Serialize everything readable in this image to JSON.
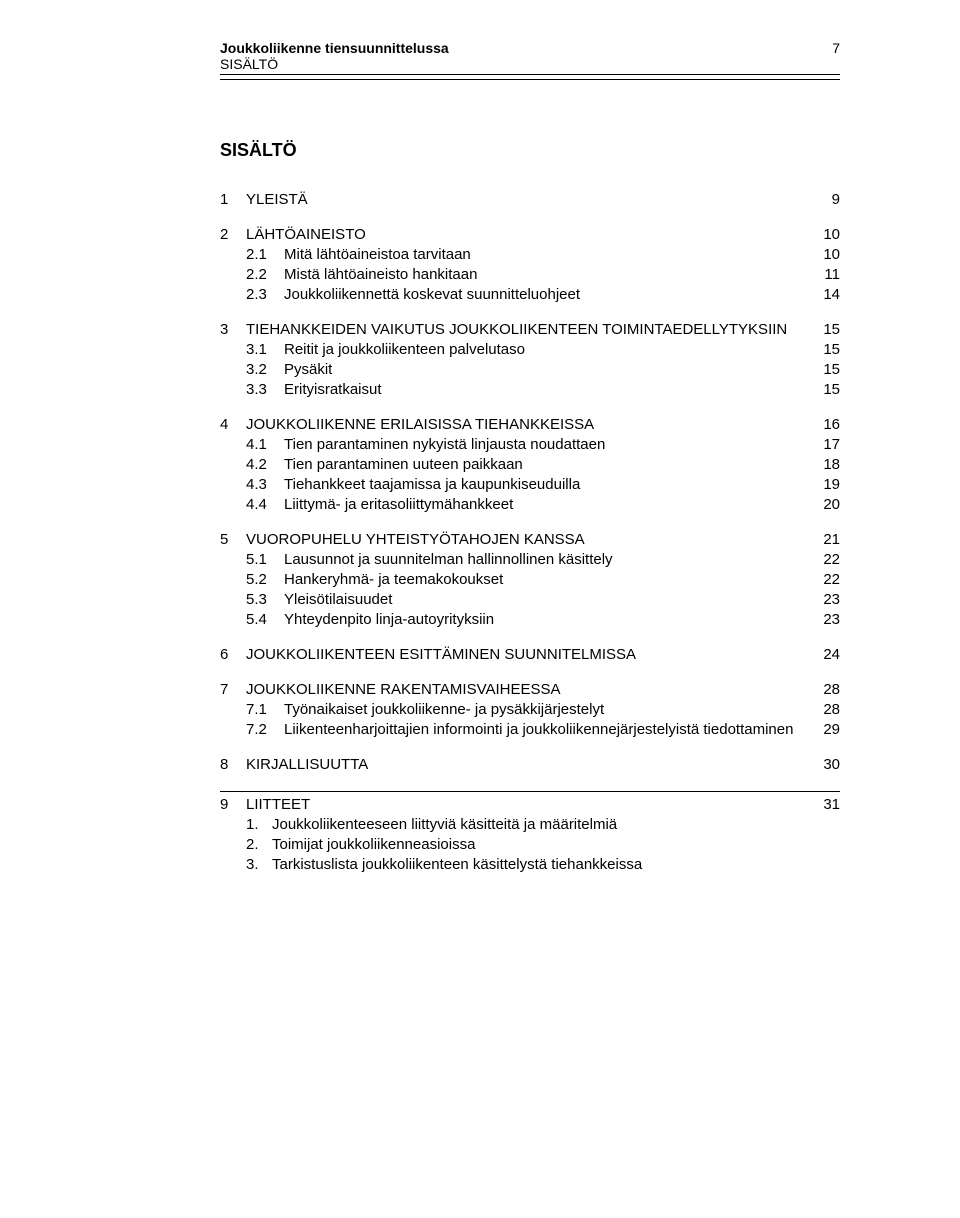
{
  "header": {
    "title": "Joukkoliikenne tiensuunnittelussa",
    "subtitle": "SISÄLTÖ",
    "page_number": "7"
  },
  "toc": {
    "title": "SISÄLTÖ",
    "sections": [
      {
        "num": "1",
        "label": "YLEISTÄ",
        "page": "9",
        "subs": []
      },
      {
        "num": "2",
        "label": "LÄHTÖAINEISTO",
        "page": "10",
        "subs": [
          {
            "num": "2.1",
            "label": "Mitä lähtöaineistoa tarvitaan",
            "page": "10"
          },
          {
            "num": "2.2",
            "label": "Mistä lähtöaineisto hankitaan",
            "page": "11"
          },
          {
            "num": "2.3",
            "label": "Joukkoliikennettä koskevat suunnitteluohjeet",
            "page": "14"
          }
        ]
      },
      {
        "num": "3",
        "label": "TIEHANKKEIDEN VAIKUTUS JOUKKOLIIKENTEEN TOIMINTAEDELLYTYKSIIN",
        "page": "15",
        "subs": [
          {
            "num": "3.1",
            "label": "Reitit ja joukkoliikenteen palvelutaso",
            "page": "15"
          },
          {
            "num": "3.2",
            "label": "Pysäkit",
            "page": "15"
          },
          {
            "num": "3.3",
            "label": "Erityisratkaisut",
            "page": "15"
          }
        ]
      },
      {
        "num": "4",
        "label": "JOUKKOLIIKENNE ERILAISISSA TIEHANKKEISSA",
        "page": "16",
        "subs": [
          {
            "num": "4.1",
            "label": "Tien parantaminen nykyistä linjausta noudattaen",
            "page": "17"
          },
          {
            "num": "4.2",
            "label": "Tien parantaminen uuteen paikkaan",
            "page": "18"
          },
          {
            "num": "4.3",
            "label": "Tiehankkeet taajamissa ja kaupunkiseuduilla",
            "page": "19"
          },
          {
            "num": "4.4",
            "label": "Liittymä- ja eritasoliittymähankkeet",
            "page": "20"
          }
        ]
      },
      {
        "num": "5",
        "label": "VUOROPUHELU YHTEISTYÖTAHOJEN KANSSA",
        "page": "21",
        "subs": [
          {
            "num": "5.1",
            "label": "Lausunnot ja suunnitelman hallinnollinen käsittely",
            "page": "22"
          },
          {
            "num": "5.2",
            "label": "Hankeryhmä- ja teemakokoukset",
            "page": "22"
          },
          {
            "num": "5.3",
            "label": "Yleisötilaisuudet",
            "page": "23"
          },
          {
            "num": "5.4",
            "label": "Yhteydenpito linja-autoyrityksiin",
            "page": "23"
          }
        ]
      },
      {
        "num": "6",
        "label": "JOUKKOLIIKENTEEN ESITTÄMINEN SUUNNITELMISSA",
        "page": "24",
        "subs": []
      },
      {
        "num": "7",
        "label": "JOUKKOLIIKENNE RAKENTAMISVAIHEESSA",
        "page": "28",
        "subs": [
          {
            "num": "7.1",
            "label": "Työnaikaiset joukkoliikenne- ja pysäkkijärjestelyt",
            "page": "28"
          },
          {
            "num": "7.2",
            "label": "Liikenteenharjoittajien informointi ja joukkoliikennejärjestelyistä tiedottaminen",
            "page": "29"
          }
        ]
      },
      {
        "num": "8",
        "label": "KIRJALLISUUTTA",
        "page": "30",
        "subs": []
      }
    ],
    "section9": {
      "num": "9",
      "label": "LIITTEET",
      "page": "31",
      "items": [
        {
          "num": "1.",
          "label": "Joukkoliikenteeseen liittyviä käsitteitä ja määritelmiä"
        },
        {
          "num": "2.",
          "label": "Toimijat joukkoliikenneasioissa"
        },
        {
          "num": "3.",
          "label": "Tarkistuslista joukkoliikenteen käsittelystä tiehankkeissa"
        }
      ]
    }
  },
  "style": {
    "font_family": "Arial",
    "body_fontsize_pt": 11,
    "title_fontsize_pt": 13,
    "text_color": "#000000",
    "background_color": "#ffffff",
    "rule_color": "#000000"
  }
}
